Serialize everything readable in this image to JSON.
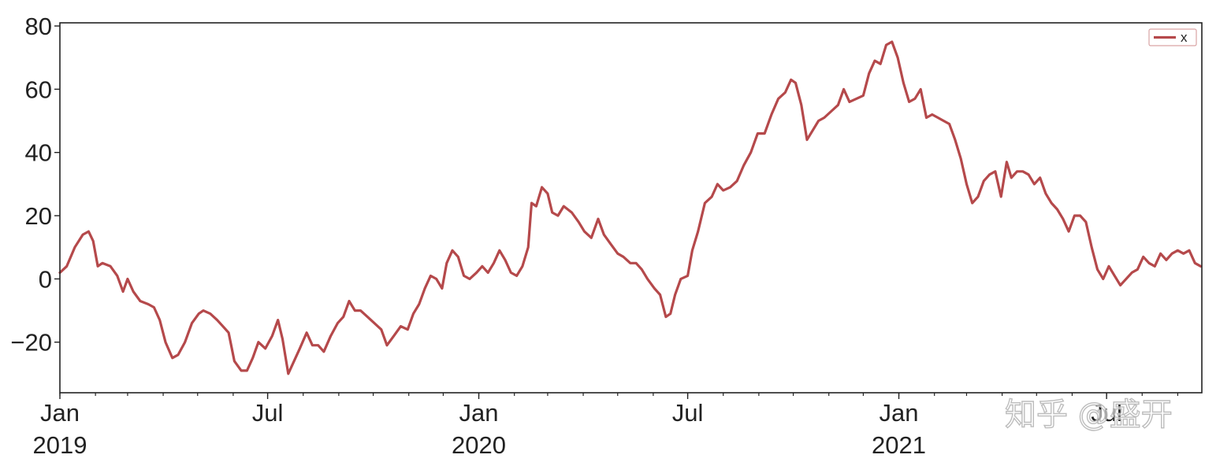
{
  "chart_data": {
    "type": "line",
    "x_axis": {
      "kind": "date",
      "range": [
        "2019-01-01",
        "2021-09-22"
      ],
      "major_ticks": [
        {
          "date": "2019-01-01",
          "label": "Jan",
          "year": "2019"
        },
        {
          "date": "2019-07-01",
          "label": "Jul",
          "year": ""
        },
        {
          "date": "2020-01-01",
          "label": "Jan",
          "year": "2020"
        },
        {
          "date": "2020-07-01",
          "label": "Jul",
          "year": ""
        },
        {
          "date": "2021-01-01",
          "label": "Jan",
          "year": "2021"
        },
        {
          "date": "2021-07-01",
          "label": "Jul",
          "year": ""
        }
      ],
      "minor_ticks": "monthly"
    },
    "y_axis": {
      "range": [
        -36,
        81
      ],
      "ticks": [
        {
          "value": 80,
          "label": "80"
        },
        {
          "value": 60,
          "label": "60"
        },
        {
          "value": 40,
          "label": "40"
        },
        {
          "value": 20,
          "label": "20"
        },
        {
          "value": 0,
          "label": "0"
        },
        {
          "value": -20,
          "label": "−20"
        }
      ]
    },
    "grid": false,
    "legend": {
      "placement": "top-right"
    },
    "series": [
      {
        "name": "x",
        "color": "#b5494b",
        "points": [
          [
            "2019-01-01",
            2
          ],
          [
            "2019-01-07",
            4
          ],
          [
            "2019-01-14",
            10
          ],
          [
            "2019-01-21",
            14
          ],
          [
            "2019-01-26",
            15
          ],
          [
            "2019-01-30",
            12
          ],
          [
            "2019-02-03",
            4
          ],
          [
            "2019-02-07",
            5
          ],
          [
            "2019-02-14",
            4
          ],
          [
            "2019-02-20",
            1
          ],
          [
            "2019-02-25",
            -4
          ],
          [
            "2019-03-01",
            0
          ],
          [
            "2019-03-06",
            -4
          ],
          [
            "2019-03-12",
            -7
          ],
          [
            "2019-03-19",
            -8
          ],
          [
            "2019-03-24",
            -9
          ],
          [
            "2019-03-29",
            -13
          ],
          [
            "2019-04-03",
            -20
          ],
          [
            "2019-04-09",
            -25
          ],
          [
            "2019-04-14",
            -24
          ],
          [
            "2019-04-20",
            -20
          ],
          [
            "2019-04-26",
            -14
          ],
          [
            "2019-05-02",
            -11
          ],
          [
            "2019-05-06",
            -10
          ],
          [
            "2019-05-12",
            -11
          ],
          [
            "2019-05-18",
            -13
          ],
          [
            "2019-05-23",
            -15
          ],
          [
            "2019-05-28",
            -17
          ],
          [
            "2019-06-02",
            -26
          ],
          [
            "2019-06-08",
            -29
          ],
          [
            "2019-06-13",
            -29
          ],
          [
            "2019-06-18",
            -25
          ],
          [
            "2019-06-23",
            -20
          ],
          [
            "2019-06-29",
            -22
          ],
          [
            "2019-07-05",
            -18
          ],
          [
            "2019-07-10",
            -13
          ],
          [
            "2019-07-14",
            -19
          ],
          [
            "2019-07-19",
            -30
          ],
          [
            "2019-07-24",
            -26
          ],
          [
            "2019-07-29",
            -22
          ],
          [
            "2019-08-04",
            -17
          ],
          [
            "2019-08-09",
            -21
          ],
          [
            "2019-08-14",
            -21
          ],
          [
            "2019-08-19",
            -23
          ],
          [
            "2019-08-25",
            -18
          ],
          [
            "2019-08-31",
            -14
          ],
          [
            "2019-09-05",
            -12
          ],
          [
            "2019-09-10",
            -7
          ],
          [
            "2019-09-15",
            -10
          ],
          [
            "2019-09-20",
            -10
          ],
          [
            "2019-09-26",
            -12
          ],
          [
            "2019-10-02",
            -14
          ],
          [
            "2019-10-08",
            -16
          ],
          [
            "2019-10-13",
            -21
          ],
          [
            "2019-10-19",
            -18
          ],
          [
            "2019-10-25",
            -15
          ],
          [
            "2019-10-31",
            -16
          ],
          [
            "2019-11-05",
            -11
          ],
          [
            "2019-11-10",
            -8
          ],
          [
            "2019-11-15",
            -3
          ],
          [
            "2019-11-20",
            1
          ],
          [
            "2019-11-25",
            0
          ],
          [
            "2019-11-30",
            -3
          ],
          [
            "2019-12-04",
            5
          ],
          [
            "2019-12-09",
            9
          ],
          [
            "2019-12-14",
            7
          ],
          [
            "2019-12-19",
            1
          ],
          [
            "2019-12-24",
            0
          ],
          [
            "2019-12-30",
            2
          ],
          [
            "2020-01-04",
            4
          ],
          [
            "2020-01-09",
            2
          ],
          [
            "2020-01-14",
            5
          ],
          [
            "2020-01-19",
            9
          ],
          [
            "2020-01-24",
            6
          ],
          [
            "2020-01-29",
            2
          ],
          [
            "2020-02-03",
            1
          ],
          [
            "2020-02-08",
            4
          ],
          [
            "2020-02-13",
            10
          ],
          [
            "2020-02-16",
            24
          ],
          [
            "2020-02-20",
            23
          ],
          [
            "2020-02-25",
            29
          ],
          [
            "2020-03-01",
            27
          ],
          [
            "2020-03-05",
            21
          ],
          [
            "2020-03-10",
            20
          ],
          [
            "2020-03-15",
            23
          ],
          [
            "2020-03-22",
            21
          ],
          [
            "2020-03-28",
            18
          ],
          [
            "2020-04-02",
            15
          ],
          [
            "2020-04-08",
            13
          ],
          [
            "2020-04-14",
            19
          ],
          [
            "2020-04-19",
            14
          ],
          [
            "2020-04-25",
            11
          ],
          [
            "2020-05-01",
            8
          ],
          [
            "2020-05-06",
            7
          ],
          [
            "2020-05-12",
            5
          ],
          [
            "2020-05-17",
            5
          ],
          [
            "2020-05-22",
            3
          ],
          [
            "2020-05-27",
            0
          ],
          [
            "2020-06-02",
            -3
          ],
          [
            "2020-06-07",
            -5
          ],
          [
            "2020-06-12",
            -12
          ],
          [
            "2020-06-16",
            -11
          ],
          [
            "2020-06-20",
            -5
          ],
          [
            "2020-06-25",
            0
          ],
          [
            "2020-07-01",
            1
          ],
          [
            "2020-07-05",
            9
          ],
          [
            "2020-07-10",
            15
          ],
          [
            "2020-07-16",
            24
          ],
          [
            "2020-07-22",
            26
          ],
          [
            "2020-07-27",
            30
          ],
          [
            "2020-08-01",
            28
          ],
          [
            "2020-08-07",
            29
          ],
          [
            "2020-08-13",
            31
          ],
          [
            "2020-08-19",
            36
          ],
          [
            "2020-08-25",
            40
          ],
          [
            "2020-08-31",
            46
          ],
          [
            "2020-09-06",
            46
          ],
          [
            "2020-09-12",
            52
          ],
          [
            "2020-09-18",
            57
          ],
          [
            "2020-09-24",
            59
          ],
          [
            "2020-09-29",
            63
          ],
          [
            "2020-10-03",
            62
          ],
          [
            "2020-10-08",
            55
          ],
          [
            "2020-10-13",
            44
          ],
          [
            "2020-10-18",
            47
          ],
          [
            "2020-10-23",
            50
          ],
          [
            "2020-10-28",
            51
          ],
          [
            "2020-11-03",
            53
          ],
          [
            "2020-11-09",
            55
          ],
          [
            "2020-11-14",
            60
          ],
          [
            "2020-11-19",
            56
          ],
          [
            "2020-11-25",
            57
          ],
          [
            "2020-12-01",
            58
          ],
          [
            "2020-12-06",
            65
          ],
          [
            "2020-12-11",
            69
          ],
          [
            "2020-12-16",
            68
          ],
          [
            "2020-12-21",
            74
          ],
          [
            "2020-12-26",
            75
          ],
          [
            "2020-12-31",
            70
          ],
          [
            "2021-01-05",
            62
          ],
          [
            "2021-01-10",
            56
          ],
          [
            "2021-01-15",
            57
          ],
          [
            "2021-01-20",
            60
          ],
          [
            "2021-01-25",
            51
          ],
          [
            "2021-01-30",
            52
          ],
          [
            "2021-02-04",
            51
          ],
          [
            "2021-02-09",
            50
          ],
          [
            "2021-02-14",
            49
          ],
          [
            "2021-02-19",
            44
          ],
          [
            "2021-02-24",
            38
          ],
          [
            "2021-03-01",
            30
          ],
          [
            "2021-03-06",
            24
          ],
          [
            "2021-03-11",
            26
          ],
          [
            "2021-03-16",
            31
          ],
          [
            "2021-03-21",
            33
          ],
          [
            "2021-03-26",
            34
          ],
          [
            "2021-03-31",
            26
          ],
          [
            "2021-04-05",
            37
          ],
          [
            "2021-04-09",
            32
          ],
          [
            "2021-04-14",
            34
          ],
          [
            "2021-04-19",
            34
          ],
          [
            "2021-04-24",
            33
          ],
          [
            "2021-04-29",
            30
          ],
          [
            "2021-05-04",
            32
          ],
          [
            "2021-05-09",
            27
          ],
          [
            "2021-05-14",
            24
          ],
          [
            "2021-05-19",
            22
          ],
          [
            "2021-05-24",
            19
          ],
          [
            "2021-05-29",
            15
          ],
          [
            "2021-06-03",
            20
          ],
          [
            "2021-06-08",
            20
          ],
          [
            "2021-06-13",
            18
          ],
          [
            "2021-06-18",
            10
          ],
          [
            "2021-06-23",
            3
          ],
          [
            "2021-06-28",
            0
          ],
          [
            "2021-07-03",
            4
          ],
          [
            "2021-07-08",
            1
          ],
          [
            "2021-07-13",
            -2
          ],
          [
            "2021-07-18",
            0
          ],
          [
            "2021-07-23",
            2
          ],
          [
            "2021-07-28",
            3
          ],
          [
            "2021-08-02",
            7
          ],
          [
            "2021-08-07",
            5
          ],
          [
            "2021-08-12",
            4
          ],
          [
            "2021-08-17",
            8
          ],
          [
            "2021-08-22",
            6
          ],
          [
            "2021-08-27",
            8
          ],
          [
            "2021-09-01",
            9
          ],
          [
            "2021-09-06",
            8
          ],
          [
            "2021-09-11",
            9
          ],
          [
            "2021-09-16",
            5
          ],
          [
            "2021-09-21",
            4
          ]
        ]
      }
    ]
  },
  "watermark": {
    "text": "知乎 @盛开"
  }
}
